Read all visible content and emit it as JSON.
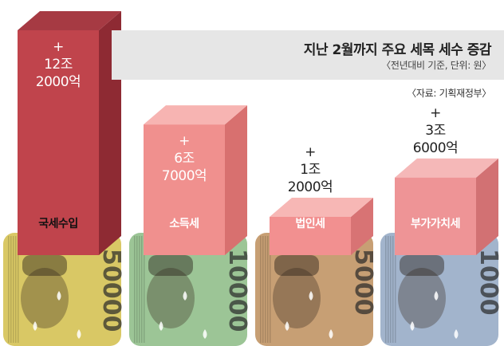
{
  "header": {
    "title": "지난 2월까지 주요 세목 세수 증감",
    "subtitle": "〈전년대비 기준, 단위: 원〉",
    "source": "〈자료: 기획재정부〉"
  },
  "chart_data": {
    "type": "bar",
    "title": "지난 2월까지 주요 세목 세수 증감",
    "subtitle": "〈전년대비 기준, 단위: 원〉",
    "unit": "원",
    "categories": [
      "국세수입",
      "소득세",
      "법인세",
      "부가가치세"
    ],
    "values": [
      122000,
      67000,
      12000,
      36000
    ],
    "value_unit_note": "억",
    "data_labels": [
      "+\n12조\n2000억",
      "+\n6조\n7000억",
      "+\n1조\n2000억",
      "+\n3조\n6000억"
    ],
    "colors": {
      "front": [
        "#c0444c",
        "#f0908e",
        "#f29090",
        "#ee9496"
      ],
      "side": [
        "#8e2a33",
        "#d8706f",
        "#d87374",
        "#d27173"
      ],
      "top": [
        "#a63a43",
        "#f7b4b2",
        "#f7b7b5",
        "#f5b8b8"
      ]
    },
    "label_colors": [
      "#ffffff",
      "#ffffff",
      "#222222",
      "#222222"
    ],
    "banknote_denominations": [
      "50000",
      "10000",
      "5000",
      "1000"
    ],
    "banknote_colors": [
      "#d9c865",
      "#9cc596",
      "#c79f74",
      "#a2b4cc"
    ],
    "legend": "none",
    "grid": false
  }
}
